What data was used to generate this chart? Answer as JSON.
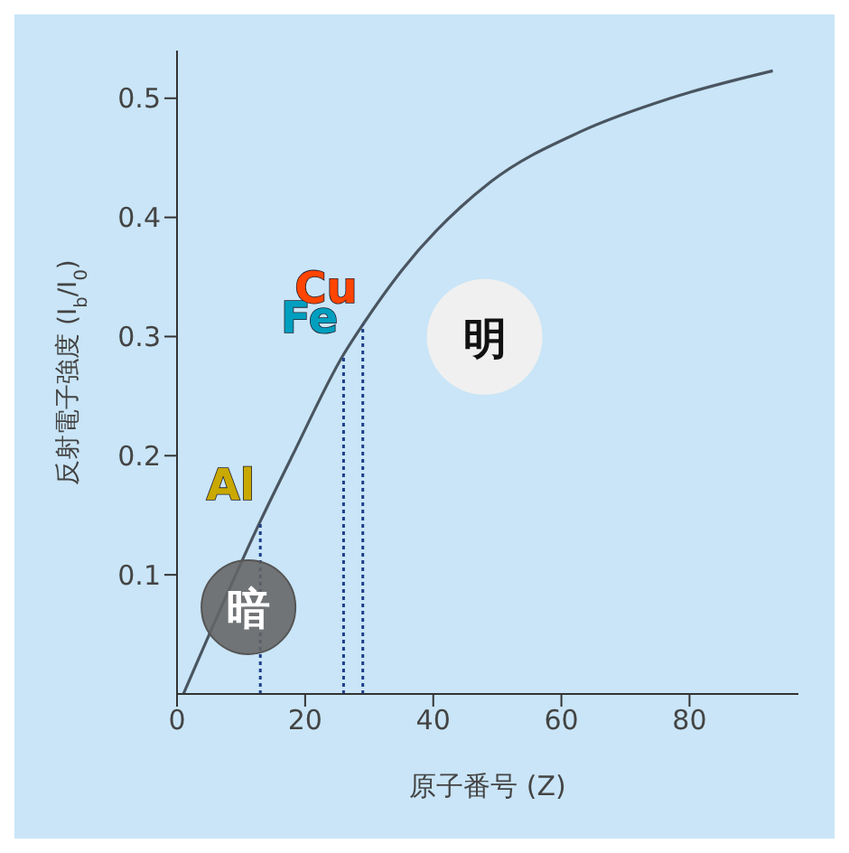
{
  "chart_data": {
    "type": "line",
    "xlabel": "原子番号 (Z)",
    "ylabel": "反射電子強度 (I$_{b}$/I$_{0}$)",
    "x": [
      1,
      13,
      18,
      26,
      29,
      35,
      49,
      63,
      77,
      93
    ],
    "series": [
      {
        "color": "#4a5560",
        "values": [
          0,
          0.145,
          0.2,
          0.285,
          0.31,
          0.355,
          0.43,
          0.472,
          0.5,
          0.523
        ]
      }
    ],
    "xlim": [
      0,
      97
    ],
    "xticks": [
      0,
      20,
      40,
      60,
      80
    ],
    "ylim": [
      0,
      0.54
    ],
    "yticks": [
      0.1,
      0.2,
      0.3,
      0.4,
      0.5
    ],
    "grid": false,
    "legend": false,
    "marker": "none",
    "line_style": "solid",
    "ref_lines": [
      {
        "axis": "x",
        "value": 13,
        "label": "Al",
        "color": "#1f3f8a",
        "line_style": "dotted"
      },
      {
        "axis": "x",
        "value": 26,
        "label": "Fe",
        "color": "#1f3f8a",
        "line_style": "dotted"
      },
      {
        "axis": "x",
        "value": 29,
        "label": "Cu",
        "color": "#1f3f8a",
        "line_style": "dotted"
      }
    ],
    "annotations": [
      "暗",
      "明"
    ]
  }
}
